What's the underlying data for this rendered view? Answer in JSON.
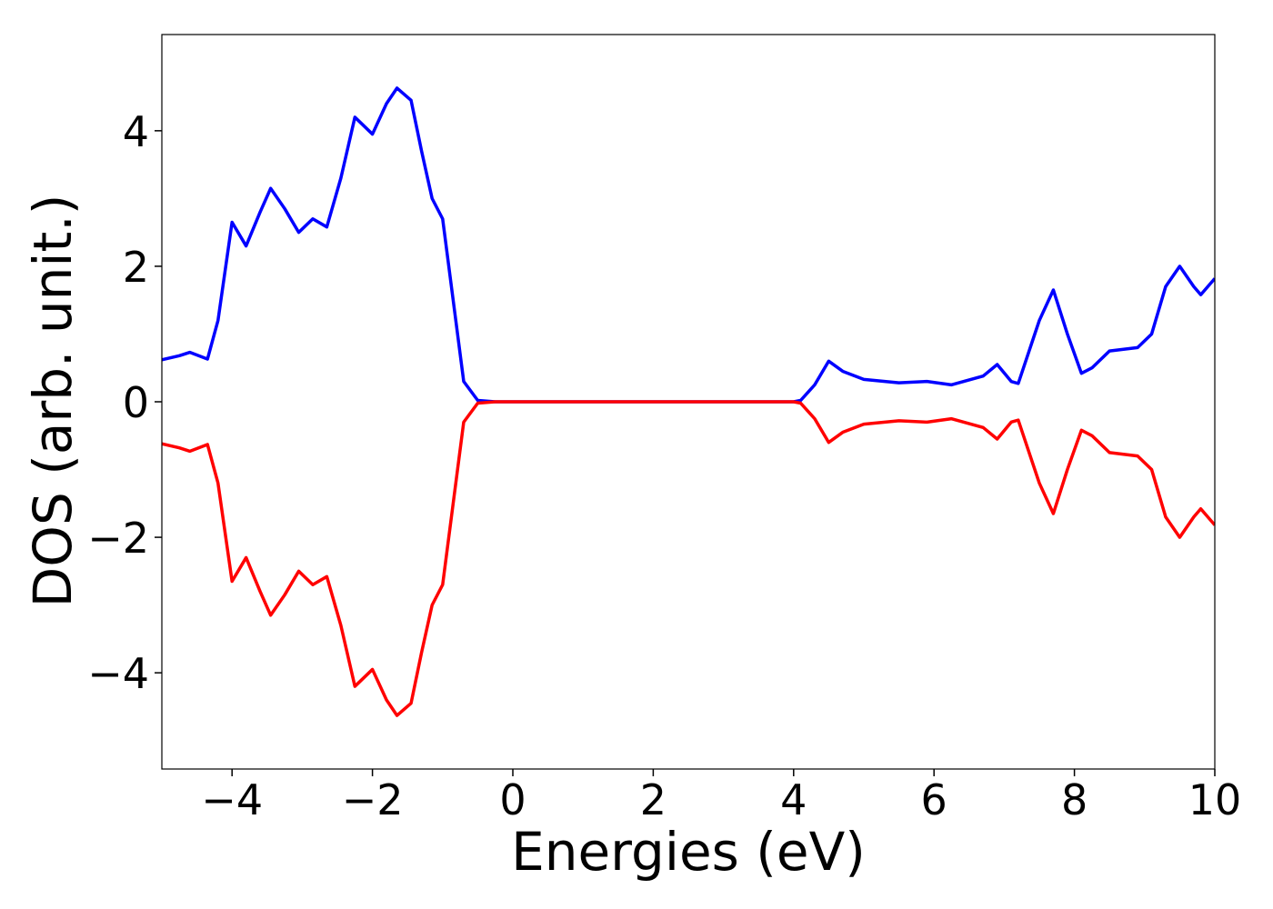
{
  "chart_data": {
    "type": "line",
    "xlabel": "Energies (eV)",
    "ylabel": "DOS (arb. unit.)",
    "x": [
      -5,
      -4.75,
      -4.6,
      -4.35,
      -4.2,
      -4.0,
      -3.8,
      -3.6,
      -3.45,
      -3.25,
      -3.05,
      -2.85,
      -2.65,
      -2.45,
      -2.25,
      -2.0,
      -1.8,
      -1.65,
      -1.45,
      -1.3,
      -1.15,
      -1.0,
      -0.85,
      -0.7,
      -0.5,
      -0.25,
      0,
      1,
      2,
      3,
      4,
      4.1,
      4.3,
      4.5,
      4.7,
      5.0,
      5.5,
      5.9,
      6.25,
      6.7,
      6.9,
      7.1,
      7.2,
      7.5,
      7.7,
      7.9,
      8.1,
      8.25,
      8.5,
      8.9,
      9.1,
      9.3,
      9.5,
      9.7,
      9.8,
      10
    ],
    "series": [
      {
        "color": "#0000ff",
        "values": [
          0.62,
          0.68,
          0.73,
          0.63,
          1.2,
          2.65,
          2.3,
          2.8,
          3.15,
          2.85,
          2.5,
          2.7,
          2.58,
          3.3,
          4.2,
          3.95,
          4.4,
          4.63,
          4.45,
          3.7,
          3.0,
          2.7,
          1.5,
          0.3,
          0.02,
          0,
          0,
          0,
          0,
          0,
          0,
          0.02,
          0.25,
          0.6,
          0.45,
          0.33,
          0.28,
          0.3,
          0.25,
          0.38,
          0.55,
          0.3,
          0.27,
          1.2,
          1.65,
          1.0,
          0.42,
          0.5,
          0.75,
          0.8,
          1.0,
          1.7,
          2.0,
          1.7,
          1.58,
          1.82
        ]
      },
      {
        "color": "#ff0000",
        "values": [
          -0.62,
          -0.68,
          -0.73,
          -0.63,
          -1.2,
          -2.65,
          -2.3,
          -2.8,
          -3.15,
          -2.85,
          -2.5,
          -2.7,
          -2.58,
          -3.3,
          -4.2,
          -3.95,
          -4.4,
          -4.63,
          -4.45,
          -3.7,
          -3.0,
          -2.7,
          -1.5,
          -0.3,
          -0.02,
          0,
          0,
          0,
          0,
          0,
          0,
          -0.02,
          -0.25,
          -0.6,
          -0.45,
          -0.33,
          -0.28,
          -0.3,
          -0.25,
          -0.38,
          -0.55,
          -0.3,
          -0.27,
          -1.2,
          -1.65,
          -1.0,
          -0.42,
          -0.5,
          -0.75,
          -0.8,
          -1.0,
          -1.7,
          -2.0,
          -1.7,
          -1.58,
          -1.82
        ]
      }
    ],
    "xlim": [
      -5,
      10
    ],
    "ylim": [
      -5.42,
      5.42
    ],
    "xticks": [
      {
        "value": -4,
        "label": "−4"
      },
      {
        "value": -2,
        "label": "−2"
      },
      0,
      2,
      4,
      6,
      8,
      10
    ],
    "yticks": [
      {
        "value": -4,
        "label": "−4"
      },
      {
        "value": -2,
        "label": "−2"
      },
      0,
      2,
      4
    ]
  }
}
